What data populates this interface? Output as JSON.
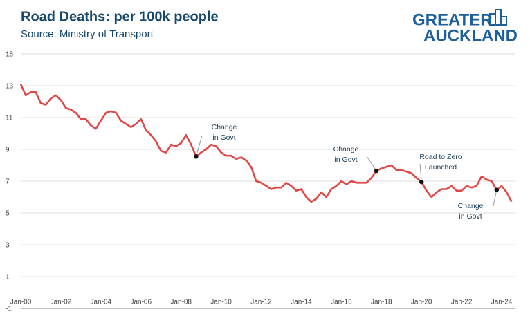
{
  "chart_data": {
    "type": "line",
    "title": "Road Deaths: per 100k people",
    "subtitle": "Source: Ministry of Transport",
    "logo": [
      "GREATER",
      "AUCKLAND"
    ],
    "categories": [
      "Jan-00",
      null,
      null,
      null,
      null,
      null,
      null,
      null,
      "Jan-02",
      null,
      null,
      null,
      null,
      null,
      null,
      null,
      "Jan-04",
      null,
      null,
      null,
      null,
      null,
      null,
      null,
      "Jan-06",
      null,
      null,
      null,
      null,
      null,
      null,
      null,
      "Jan-08",
      null,
      null,
      null,
      null,
      null,
      null,
      null,
      "Jan-10",
      null,
      null,
      null,
      null,
      null,
      null,
      null,
      "Jan-12",
      null,
      null,
      null,
      null,
      null,
      null,
      null,
      "Jan-14",
      null,
      null,
      null,
      null,
      null,
      null,
      null,
      "Jan-16",
      null,
      null,
      null,
      null,
      null,
      null,
      null,
      "Jan-18",
      null,
      null,
      null,
      null,
      null,
      null,
      null,
      "Jan-20",
      null,
      null,
      null,
      null,
      null,
      null,
      null,
      "Jan-22",
      null,
      null,
      null,
      null,
      null,
      null,
      null,
      "Jan-24",
      null,
      null
    ],
    "series": [
      {
        "name": "Road deaths per 100k",
        "color": "#e04848",
        "values": [
          13.1,
          12.4,
          12.6,
          12.6,
          11.9,
          11.8,
          12.2,
          12.4,
          12.1,
          11.6,
          11.5,
          11.3,
          10.9,
          10.9,
          10.5,
          10.3,
          10.8,
          11.3,
          11.4,
          11.3,
          10.8,
          10.6,
          10.4,
          10.6,
          10.9,
          10.2,
          9.9,
          9.5,
          8.9,
          8.8,
          9.3,
          9.2,
          9.4,
          9.9,
          9.3,
          8.55,
          8.8,
          9.0,
          9.3,
          9.2,
          8.8,
          8.6,
          8.6,
          8.4,
          8.5,
          8.3,
          7.9,
          7.0,
          6.9,
          6.7,
          6.5,
          6.6,
          6.6,
          6.9,
          6.7,
          6.4,
          6.5,
          6.0,
          5.7,
          5.9,
          6.3,
          6.0,
          6.5,
          6.7,
          7.0,
          6.8,
          7.0,
          6.9,
          6.9,
          6.9,
          7.2,
          7.65,
          7.8,
          7.9,
          8.0,
          7.7,
          7.7,
          7.6,
          7.5,
          7.2,
          6.95,
          6.4,
          6.0,
          6.3,
          6.5,
          6.5,
          6.7,
          6.4,
          6.4,
          6.7,
          6.6,
          6.7,
          7.3,
          7.1,
          7.0,
          6.45,
          6.7,
          6.3,
          5.7
        ]
      }
    ],
    "ylim": [
      -1,
      15
    ],
    "yticks": [
      -1,
      1,
      3,
      5,
      7,
      9,
      11,
      13,
      15
    ],
    "grid": true,
    "annotations": [
      [
        "Change",
        "in Govt"
      ],
      [
        "Change",
        "in Govt"
      ],
      [
        "Road to Zero",
        "Launched"
      ],
      [
        "Change",
        "in Govt"
      ]
    ]
  }
}
